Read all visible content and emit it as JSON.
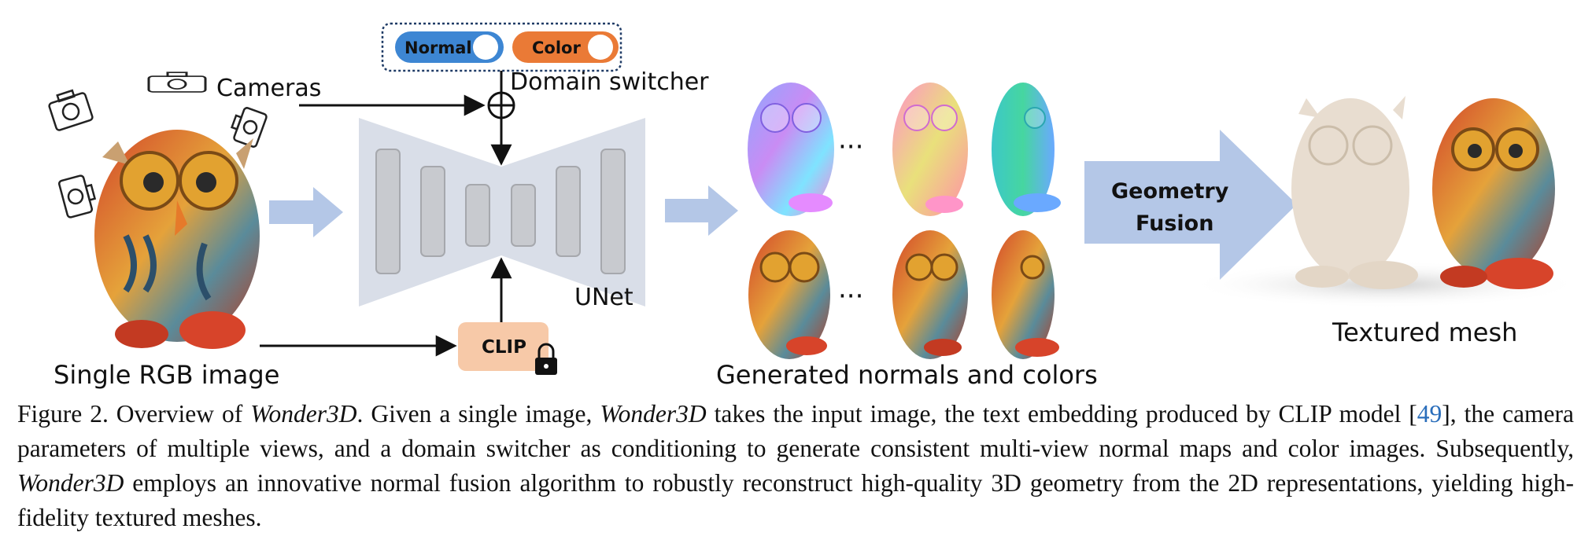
{
  "figure": {
    "cameras_label": "Cameras",
    "input_label": "Single RGB image",
    "toggle_normal": "Normal",
    "toggle_color": "Color",
    "domain_switcher_label": "Domain switcher",
    "unet_label": "UNet",
    "clip_label": "CLIP",
    "ellipsis": "···",
    "generated_label": "Generated normals and colors",
    "fusion_line1": "Geometry",
    "fusion_line2": "Fusion",
    "output_label": "Textured mesh"
  },
  "caption": {
    "prefix": "Figure 2.  Overview of ",
    "name": "Wonder3D",
    "part1": ". Given a single image, ",
    "part2": " takes the input image, the text embedding produced by CLIP model [",
    "ref": "49",
    "part3": "], the camera parameters of multiple views, and a domain switcher as conditioning to generate consistent multi-view normal maps and color images. Subsequently, ",
    "part4": " employs an innovative normal fusion algorithm to robustly reconstruct high-quality 3D geometry from the 2D representations, yielding high-fidelity textured meshes."
  },
  "colors": {
    "arrow_fill": "#b4c7e7",
    "unet_fill": "#d9dee8",
    "block_fill": "#c8cacf",
    "toggle_normal": "#3d86d3",
    "toggle_color": "#ea7a36",
    "clip_fill": "#f7c9a8"
  }
}
